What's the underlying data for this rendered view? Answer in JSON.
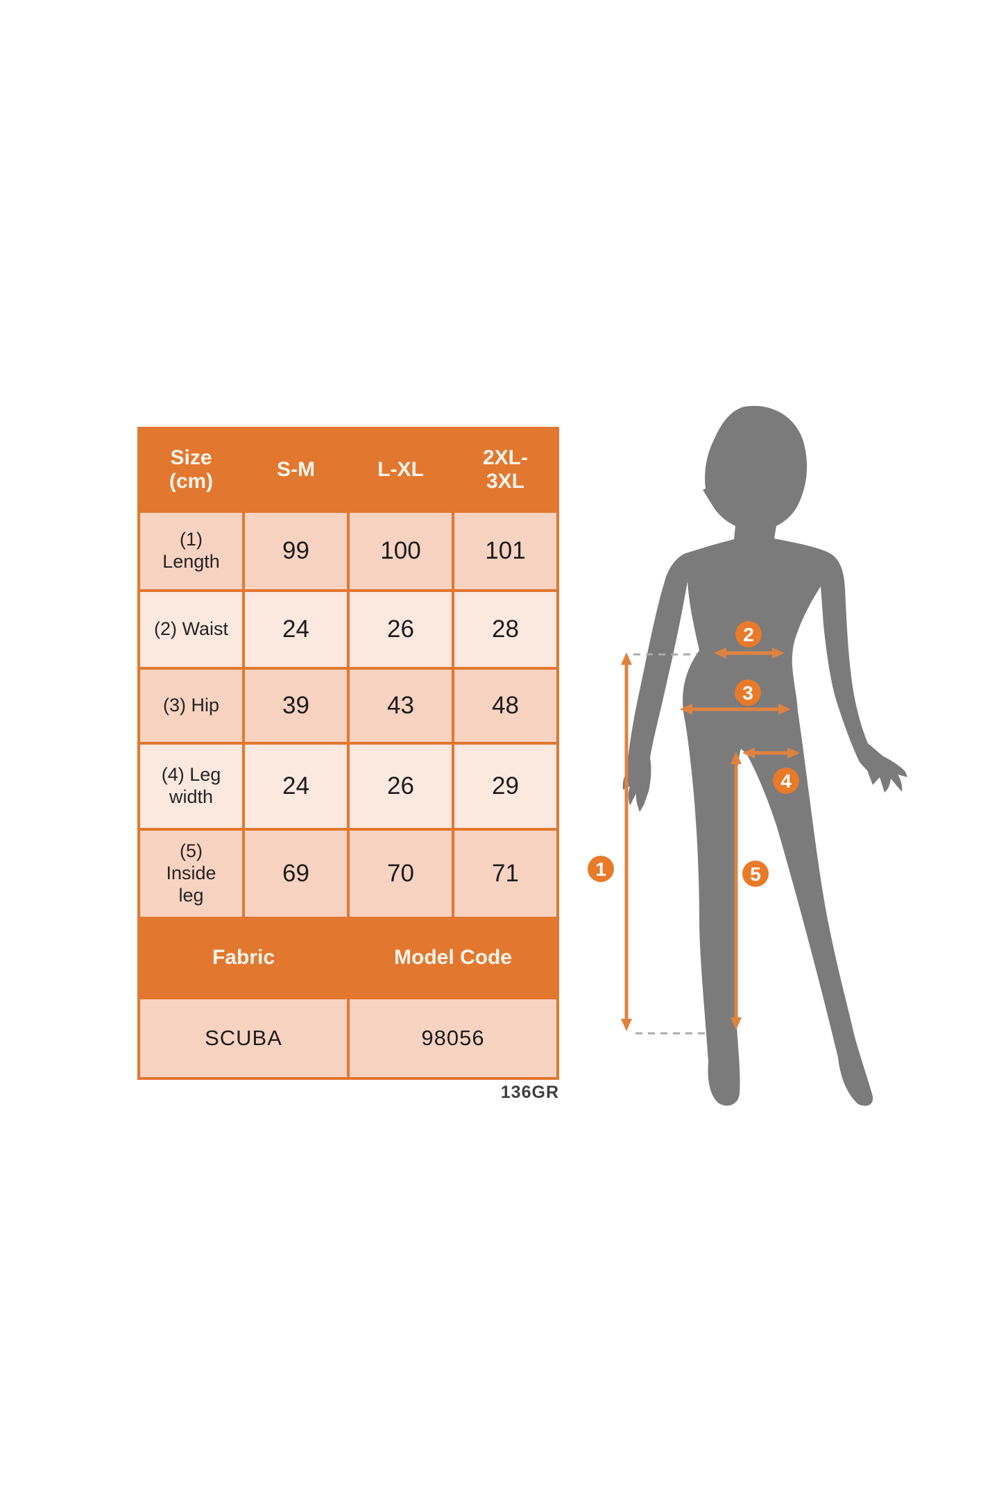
{
  "size_table": {
    "columns": [
      "Size\n(cm)",
      "S-M",
      "L-XL",
      "2XL-\n3XL"
    ],
    "rows": [
      {
        "label": "(1)\nLength",
        "values": [
          "99",
          "100",
          "101"
        ]
      },
      {
        "label": "(2) Waist",
        "values": [
          "24",
          "26",
          "28"
        ]
      },
      {
        "label": "(3) Hip",
        "values": [
          "39",
          "43",
          "48"
        ]
      },
      {
        "label": "(4) Leg\nwidth",
        "values": [
          "24",
          "26",
          "29"
        ]
      },
      {
        "label": "(5)\nInside\nleg",
        "values": [
          "69",
          "70",
          "71"
        ]
      }
    ],
    "footer": {
      "fabric_label": "Fabric",
      "model_code_label": "Model Code",
      "fabric_value": "SCUBA",
      "model_code_value": "98056"
    }
  },
  "note": "136GR",
  "figure": {
    "markers": [
      "1",
      "2",
      "3",
      "4",
      "5"
    ]
  },
  "colors": {
    "table_orange": "#e2772f",
    "cell_pink_dark": "#f8d3c2",
    "cell_pink_light": "#fbe9e0",
    "header_text": "#fcf4eb",
    "body_text": "#1c1c1c",
    "silhouette_gray": "#7b7b7b",
    "arrow_orange": "#e0823f",
    "marker_orange": "#e87a2a",
    "dashed_gray": "#ababab"
  }
}
